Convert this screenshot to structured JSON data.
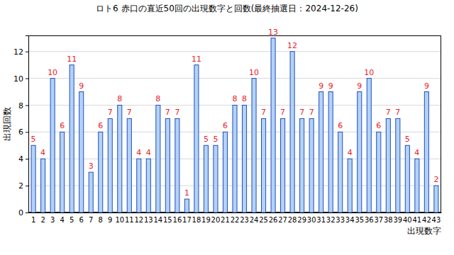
{
  "chart_data": {
    "type": "bar",
    "title": "ロト6 赤口の直近50回の出現数字と回数(最終抽選日：2024-12-26)",
    "x_label": "出現数字",
    "y_label": "出現回数",
    "categories": [
      1,
      2,
      3,
      4,
      5,
      6,
      7,
      8,
      9,
      10,
      11,
      12,
      13,
      14,
      15,
      16,
      17,
      18,
      19,
      20,
      21,
      22,
      23,
      24,
      25,
      26,
      27,
      28,
      29,
      30,
      31,
      32,
      33,
      34,
      35,
      36,
      37,
      38,
      39,
      40,
      41,
      42,
      43
    ],
    "values": [
      5,
      4,
      10,
      6,
      11,
      9,
      3,
      6,
      7,
      8,
      7,
      4,
      4,
      8,
      7,
      7,
      1,
      11,
      5,
      5,
      6,
      8,
      8,
      10,
      7,
      13,
      7,
      12,
      7,
      7,
      9,
      9,
      6,
      4,
      9,
      10,
      6,
      7,
      7,
      5,
      4,
      9,
      2
    ],
    "color": "#b4d2f5",
    "ylim": [
      0,
      13.2
    ],
    "yticks": [
      0,
      2,
      4,
      6,
      8,
      10,
      12
    ],
    "grid": true,
    "data_labels": true
  }
}
